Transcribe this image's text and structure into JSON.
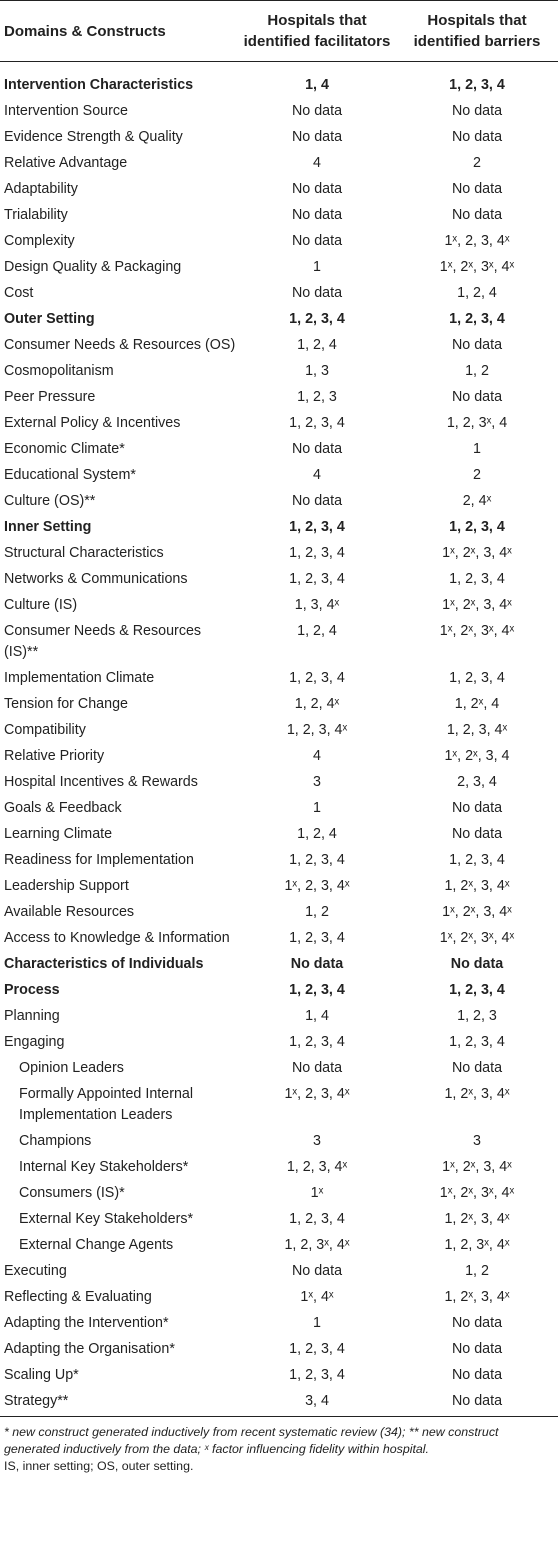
{
  "header": {
    "col1": "Domains & Constructs",
    "col2": "Hospitals that identified facilitators",
    "col3": "Hospitals that identified barriers"
  },
  "rows": [
    {
      "name": "Intervention Characteristics",
      "bold": true,
      "f": "1, 4",
      "b": "1, 2, 3, 4"
    },
    {
      "name": "Intervention Source",
      "f": "No data",
      "b": "No data"
    },
    {
      "name": "Evidence Strength & Quality",
      "f": "No data",
      "b": "No data"
    },
    {
      "name": "Relative Advantage",
      "f": "4",
      "b": "2"
    },
    {
      "name": "Adaptability",
      "f": "No data",
      "b": "No data"
    },
    {
      "name": "Trialability",
      "f": "No data",
      "b": "No data"
    },
    {
      "name": "Complexity",
      "f": "No data",
      "b": "1ˣ, 2, 3, 4ˣ"
    },
    {
      "name": "Design Quality & Packaging",
      "f": "1",
      "b": "1ˣ, 2ˣ, 3ˣ, 4ˣ"
    },
    {
      "name": "Cost",
      "f": "No data",
      "b": "1, 2, 4"
    },
    {
      "name": "Outer Setting",
      "bold": true,
      "f": "1, 2, 3, 4",
      "b": "1, 2, 3, 4"
    },
    {
      "name": "Consumer Needs & Resources (OS)",
      "f": "1, 2, 4",
      "b": "No data"
    },
    {
      "name": "Cosmopolitanism",
      "f": "1, 3",
      "b": "1, 2"
    },
    {
      "name": "Peer Pressure",
      "f": "1, 2, 3",
      "b": "No data"
    },
    {
      "name": "External Policy & Incentives",
      "f": "1, 2, 3, 4",
      "b": "1, 2, 3ˣ, 4"
    },
    {
      "name": "Economic Climate*",
      "f": "No data",
      "b": "1"
    },
    {
      "name": "Educational System*",
      "f": "4",
      "b": "2"
    },
    {
      "name": "Culture (OS)**",
      "f": "No data",
      "b": "2, 4ˣ"
    },
    {
      "name": "Inner Setting",
      "bold": true,
      "f": "1, 2, 3, 4",
      "b": "1, 2, 3, 4"
    },
    {
      "name": "Structural Characteristics",
      "f": "1, 2, 3, 4",
      "b": "1ˣ, 2ˣ, 3, 4ˣ"
    },
    {
      "name": "Networks & Communications",
      "f": "1, 2, 3, 4",
      "b": "1, 2, 3, 4"
    },
    {
      "name": "Culture (IS)",
      "f": "1, 3, 4ˣ",
      "b": "1ˣ, 2ˣ, 3, 4ˣ"
    },
    {
      "name": "Consumer Needs & Resources (IS)**",
      "f": "1, 2, 4",
      "b": "1ˣ, 2ˣ, 3ˣ, 4ˣ"
    },
    {
      "name": "Implementation Climate",
      "f": "1, 2, 3, 4",
      "b": "1, 2, 3, 4"
    },
    {
      "name": "Tension for Change",
      "f": "1, 2, 4ˣ",
      "b": "1, 2ˣ, 4"
    },
    {
      "name": "Compatibility",
      "f": "1, 2, 3, 4ˣ",
      "b": "1, 2, 3, 4ˣ"
    },
    {
      "name": "Relative Priority",
      "f": "4",
      "b": "1ˣ, 2ˣ, 3, 4"
    },
    {
      "name": "Hospital Incentives & Rewards",
      "f": "3",
      "b": "2, 3, 4"
    },
    {
      "name": "Goals & Feedback",
      "f": "1",
      "b": "No data"
    },
    {
      "name": "Learning Climate",
      "f": "1, 2, 4",
      "b": "No data"
    },
    {
      "name": "Readiness for Implementation",
      "f": "1, 2, 3, 4",
      "b": "1, 2, 3, 4"
    },
    {
      "name": "Leadership Support",
      "f": "1ˣ, 2, 3, 4ˣ",
      "b": "1, 2ˣ, 3, 4ˣ"
    },
    {
      "name": "Available Resources",
      "f": "1, 2",
      "b": "1ˣ, 2ˣ, 3, 4ˣ"
    },
    {
      "name": "Access to Knowledge & Information",
      "f": "1, 2, 3, 4",
      "b": "1ˣ, 2ˣ, 3ˣ, 4ˣ"
    },
    {
      "name": "Characteristics of Individuals",
      "bold": true,
      "f": "No data",
      "b": "No data"
    },
    {
      "name": "Process",
      "bold": true,
      "f": "1, 2, 3, 4",
      "b": "1, 2, 3, 4"
    },
    {
      "name": "Planning",
      "f": "1, 4",
      "b": "1, 2, 3"
    },
    {
      "name": "Engaging",
      "f": "1, 2, 3, 4",
      "b": "1, 2, 3, 4"
    },
    {
      "name": "Opinion Leaders",
      "indent": true,
      "f": "No data",
      "b": "No data"
    },
    {
      "name": "Formally Appointed Internal Implementation Leaders",
      "indent": true,
      "f": "1ˣ, 2, 3, 4ˣ",
      "b": "1, 2ˣ, 3, 4ˣ"
    },
    {
      "name": "Champions",
      "indent": true,
      "f": "3",
      "b": "3"
    },
    {
      "name": "Internal Key Stakeholders*",
      "indent": true,
      "f": "1, 2, 3, 4ˣ",
      "b": "1ˣ, 2ˣ, 3, 4ˣ"
    },
    {
      "name": "Consumers (IS)*",
      "indent": true,
      "f": "1ˣ",
      "b": "1ˣ, 2ˣ, 3ˣ, 4ˣ"
    },
    {
      "name": "External Key Stakeholders*",
      "indent": true,
      "f": "1, 2, 3, 4",
      "b": "1, 2ˣ, 3, 4ˣ"
    },
    {
      "name": "External Change Agents",
      "indent": true,
      "f": "1, 2, 3ˣ, 4ˣ",
      "b": "1, 2, 3ˣ, 4ˣ"
    },
    {
      "name": "Executing",
      "f": "No data",
      "b": "1, 2"
    },
    {
      "name": "Reflecting & Evaluating",
      "f": "1ˣ, 4ˣ",
      "b": "1, 2ˣ, 3, 4ˣ"
    },
    {
      "name": "Adapting the Intervention*",
      "f": "1",
      "b": "No data"
    },
    {
      "name": "Adapting the Organisation*",
      "f": "1, 2, 3, 4",
      "b": "No data"
    },
    {
      "name": "Scaling Up*",
      "f": "1, 2, 3, 4",
      "b": "No data"
    },
    {
      "name": "Strategy**",
      "f": "3, 4",
      "b": "No data"
    }
  ],
  "notes": {
    "line1": "* new construct generated inductively from recent systematic review (34); ** new construct generated inductively from the data; ˣ factor influencing fidelity within hospital.",
    "line2": "IS, inner setting; OS, outer setting."
  }
}
